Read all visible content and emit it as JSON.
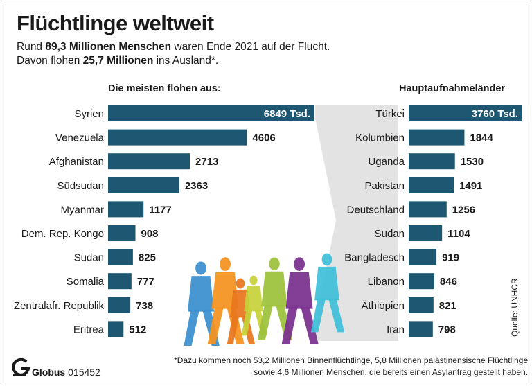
{
  "title": "Flüchtlinge weltweit",
  "subtitle": {
    "line1_prefix": "Rund ",
    "line1_bold": "89,3 Millionen Menschen",
    "line1_suffix": " waren Ende 2021 auf der Flucht.",
    "line2_prefix": "Davon flohen ",
    "line2_bold": "25,7 Millionen",
    "line2_suffix": " ins Ausland*."
  },
  "colors": {
    "bar": "#1d5771",
    "background": "#ffffff",
    "text": "#1a1a1a",
    "connector": "#e3e3e3"
  },
  "chart_data": [
    {
      "type": "bar",
      "orientation": "horizontal",
      "title": "Die meisten flohen aus:",
      "unit_suffix": " Tsd.",
      "categories": [
        "Syrien",
        "Venezuela",
        "Afghanistan",
        "Südsudan",
        "Myanmar",
        "Dem. Rep. Kongo",
        "Sudan",
        "Somalia",
        "Zentralafr. Republik",
        "Eritrea"
      ],
      "values": [
        6849,
        4606,
        2713,
        2363,
        1177,
        908,
        825,
        777,
        738,
        512
      ],
      "labels": [
        "6849 Tsd.",
        "4606",
        "2713",
        "2363",
        "1177",
        "908",
        "825",
        "777",
        "738",
        "512"
      ]
    },
    {
      "type": "bar",
      "orientation": "horizontal",
      "title": "Hauptaufnahmeländer",
      "unit_suffix": " Tsd.",
      "categories": [
        "Türkei",
        "Kolumbien",
        "Uganda",
        "Pakistan",
        "Deutschland",
        "Sudan",
        "Bangladesch",
        "Libanon",
        "Äthiopien",
        "Iran"
      ],
      "values": [
        3760,
        1844,
        1530,
        1491,
        1256,
        1104,
        919,
        846,
        821,
        798
      ],
      "labels": [
        "3760 Tsd.",
        "1844",
        "1530",
        "1491",
        "1256",
        "1104",
        "919",
        "846",
        "821",
        "798"
      ]
    }
  ],
  "source": "Quelle: UNHCR",
  "publisher": {
    "name": "Globus",
    "number": " 015452",
    "logo_letter": "G"
  },
  "footnote": {
    "line1": "*Dazu kommen noch 53,2 Millionen Binnenflüchtlinge, 5,8 Millionen palästinensische Flüchtlinge",
    "line2": "sowie 4,6 Millionen Menschen, die bereits einen Asylantrag gestellt haben."
  },
  "illustration": {
    "icon": "refugee-silhouettes-icon",
    "colors": [
      "#3a8fd0",
      "#f4921e",
      "#e8761d",
      "#c6d23a",
      "#9dc23a",
      "#7a2f8e",
      "#3fbfd8"
    ]
  }
}
